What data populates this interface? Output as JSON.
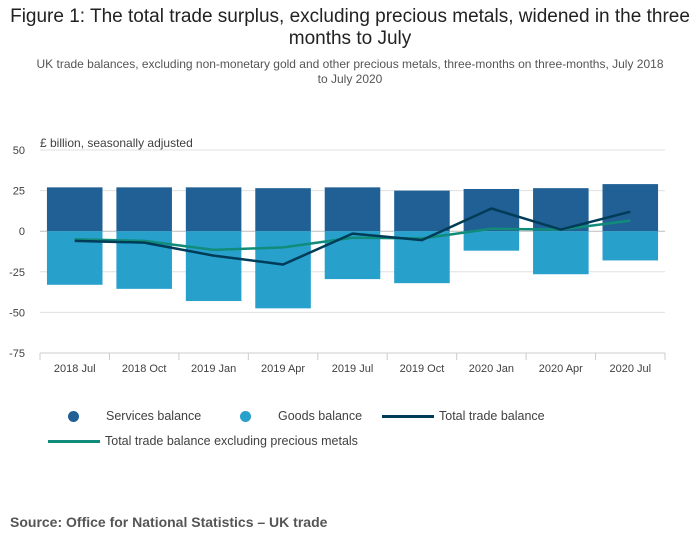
{
  "title": "Figure 1: The total trade surplus, excluding precious metals, widened in the three months to July",
  "subtitle": "UK trade balances, excluding non-monetary gold and other precious metals, three-months on three-months, July 2018 to July 2020",
  "units_label": "£ billion, seasonally adjusted",
  "source": "Source: Office for National Statistics – UK trade",
  "colors": {
    "services": "#206095",
    "goods": "#27a0cc",
    "total": "#003c57",
    "total_excl": "#118c7b",
    "grid": "#e0e0e0",
    "axis": "#cccccc"
  },
  "chart_data": {
    "type": "bar",
    "categories": [
      "2018 Jul",
      "2018 Oct",
      "2019 Jan",
      "2019 Apr",
      "2019 Jul",
      "2019 Oct",
      "2020 Jan",
      "2020 Apr",
      "2020 Jul"
    ],
    "ylim": [
      -75,
      50
    ],
    "yticks": [
      50,
      25,
      0,
      -25,
      -50,
      -75
    ],
    "series": [
      {
        "name": "Services balance",
        "type": "bar",
        "values": [
          27,
          27,
          27,
          26.5,
          27,
          25,
          26,
          26.5,
          29
        ]
      },
      {
        "name": "Goods balance",
        "type": "bar",
        "values": [
          -33,
          -35.5,
          -43,
          -47.5,
          -29.5,
          -32,
          -12,
          -26.5,
          -18
        ]
      },
      {
        "name": "Total trade balance",
        "type": "line",
        "values": [
          -6,
          -7,
          -15,
          -20.5,
          -1.5,
          -5.5,
          14,
          1,
          12
        ]
      },
      {
        "name": "Total trade balance excluding precious metals",
        "type": "line",
        "values": [
          -5,
          -6,
          -11.5,
          -10,
          -4,
          -4.5,
          1.5,
          1,
          6.5
        ]
      }
    ],
    "grid": true,
    "legend": "bottom"
  }
}
